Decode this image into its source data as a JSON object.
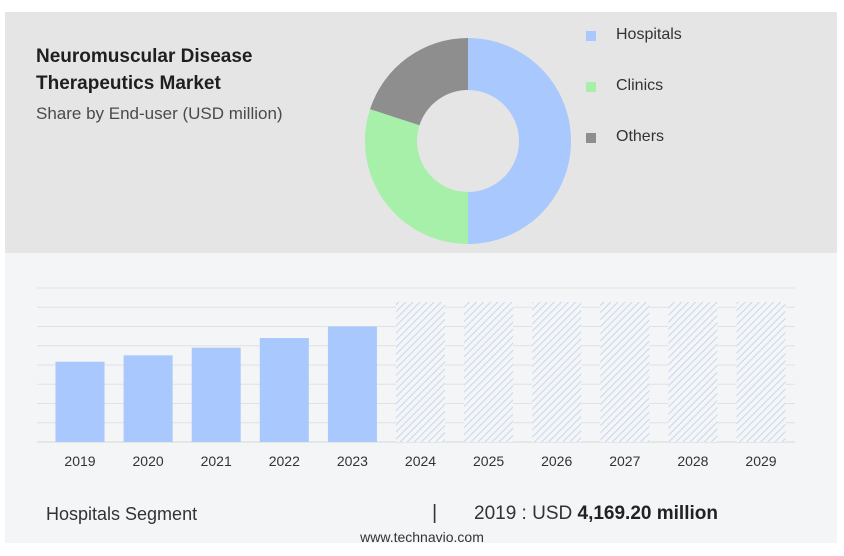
{
  "chart_data": [
    {
      "type": "pie",
      "variant": "donut",
      "title": "Neuromuscular Disease\nTherapeutics Market",
      "subtitle": "Share by End-user (USD million)",
      "legend": [
        {
          "label": "Hospitals",
          "color": "#a9c8fd"
        },
        {
          "label": "Clinics",
          "color": "#a6f0a9"
        },
        {
          "label": "Others",
          "color": "#8e8e8e"
        }
      ],
      "slices": [
        {
          "label": "Hospitals",
          "value": 50,
          "color": "#a9c8fd"
        },
        {
          "label": "Clinics",
          "value": 30,
          "color": "#a6f0a9"
        },
        {
          "label": "Others",
          "value": 20,
          "color": "#8e8e8e"
        }
      ]
    },
    {
      "type": "bar",
      "series_name": "Hospitals Segment",
      "categories": [
        "2019",
        "2020",
        "2021",
        "2022",
        "2023",
        "2024",
        "2025",
        "2026",
        "2027",
        "2028",
        "2029"
      ],
      "values": [
        4169.2,
        4500,
        4900,
        5400,
        6000,
        null,
        null,
        null,
        null,
        null,
        null
      ],
      "forecast_categories": [
        "2024",
        "2025",
        "2026",
        "2027",
        "2028",
        "2029"
      ],
      "ylim": [
        0,
        8000
      ],
      "grid": true,
      "bar_color": "#a9c8fd",
      "forecast_color": "#c7d6ee"
    }
  ],
  "footer": {
    "segment_label": "Hospitals Segment",
    "separator": "|",
    "value_prefix": "2019 : USD",
    "value_bold": "4,169.20 million"
  },
  "source": "www.technavio.com"
}
